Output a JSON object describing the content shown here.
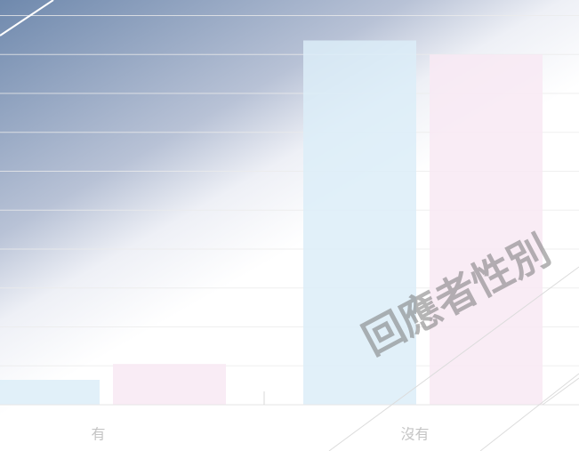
{
  "chart_data": {
    "type": "bar",
    "categories": [
      "有",
      "沒有"
    ],
    "series": [
      {
        "color": "#dcedf8",
        "values": [
          0.64,
          9.36
        ]
      },
      {
        "color": "#f8e9f3",
        "values": [
          1.05,
          9.0
        ]
      }
    ],
    "ylim": [
      0,
      10.4
    ],
    "yticks": [
      1,
      2,
      3,
      4,
      5,
      6,
      7,
      8,
      9,
      10
    ],
    "grid": true,
    "watermark": "回應者性別"
  }
}
